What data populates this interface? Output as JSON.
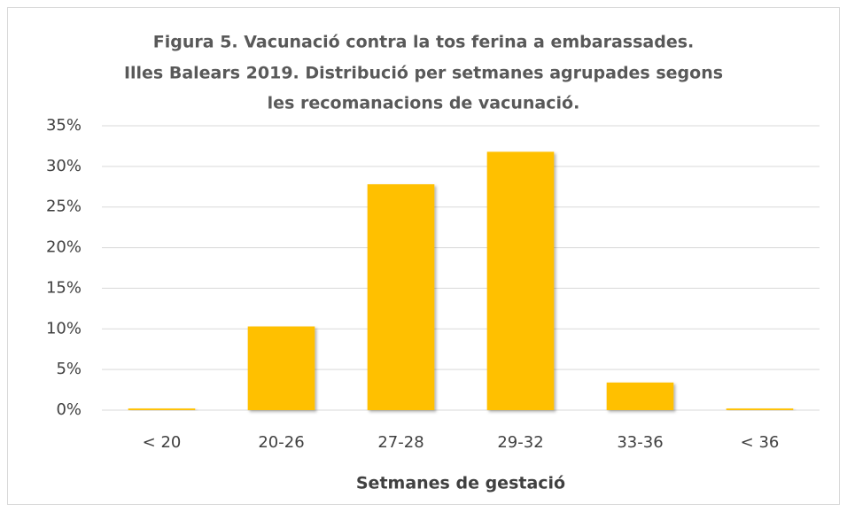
{
  "chart_data": {
    "type": "bar",
    "title": [
      "Figura 5. Vacunació contra la tos ferina a embarassades.",
      "Illes Balears 2019. Distribució per setmanes agrupades segons",
      "les recomanacions de vacunació."
    ],
    "x_label": "Setmanes de gestació",
    "categories": [
      "< 20",
      "20-26",
      "27-28",
      "29-32",
      "33-36",
      "< 36"
    ],
    "values": [
      0.2,
      10.3,
      27.8,
      31.8,
      3.4,
      0.2
    ],
    "color": "#ffc000",
    "ylim": [
      0,
      35
    ],
    "yticks": [
      {
        "value": 0,
        "label": "0%"
      },
      {
        "value": 5,
        "label": "5%"
      },
      {
        "value": 10,
        "label": "10%"
      },
      {
        "value": 15,
        "label": "15%"
      },
      {
        "value": 20,
        "label": "20%"
      },
      {
        "value": 25,
        "label": "25%"
      },
      {
        "value": 30,
        "label": "30%"
      },
      {
        "value": 35,
        "label": "35%"
      }
    ],
    "grid": true
  }
}
